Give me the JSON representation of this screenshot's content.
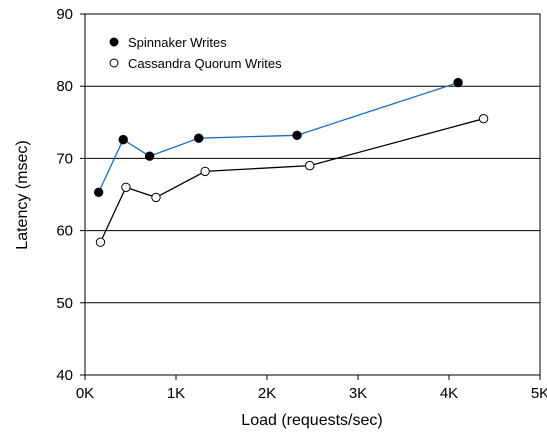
{
  "chart_data": {
    "type": "line",
    "title": "",
    "xlabel": "Load (requests/sec)",
    "ylabel": "Latency (msec)",
    "xlim": [
      0,
      5000
    ],
    "ylim": [
      40,
      90
    ],
    "xticks": [
      0,
      1000,
      2000,
      3000,
      4000,
      5000
    ],
    "xtick_labels": [
      "0K",
      "1K",
      "2K",
      "3K",
      "4K",
      "5K"
    ],
    "yticks": [
      40,
      50,
      60,
      70,
      80,
      90
    ],
    "ytick_labels": [
      "40",
      "50",
      "60",
      "70",
      "80",
      "90"
    ],
    "grid": "horizontal",
    "legend_position": "top-left",
    "series": [
      {
        "name": "Spinnaker Writes",
        "marker": "filled-circle",
        "line_color": "#1f6fbf",
        "marker_color": "#000000",
        "points": [
          [
            150,
            65.3
          ],
          [
            420,
            72.6
          ],
          [
            710,
            70.3
          ],
          [
            1250,
            72.8
          ],
          [
            2330,
            73.2
          ],
          [
            4100,
            80.5
          ]
        ]
      },
      {
        "name": "Cassandra Quorum Writes",
        "marker": "open-circle",
        "line_color": "#000000",
        "marker_color": "#000000",
        "points": [
          [
            170,
            58.4
          ],
          [
            450,
            66.0
          ],
          [
            780,
            64.6
          ],
          [
            1320,
            68.2
          ],
          [
            2470,
            69.0
          ],
          [
            4380,
            75.5
          ]
        ]
      }
    ]
  }
}
